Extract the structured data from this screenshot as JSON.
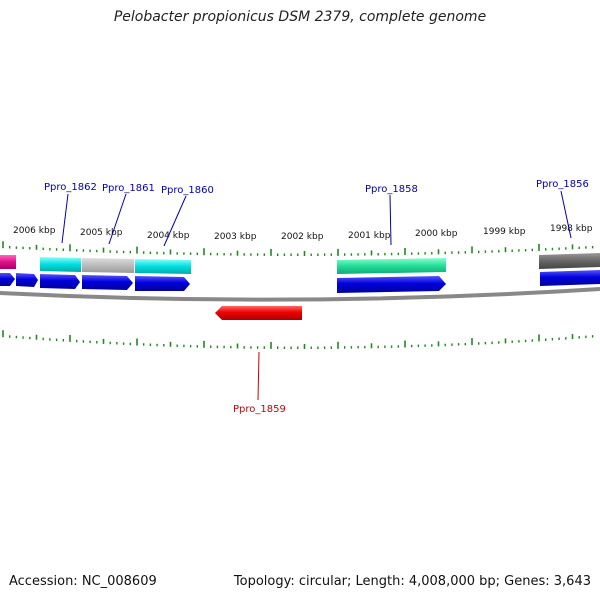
{
  "title": "Pelobacter propionicus DSM 2379, complete genome",
  "footer": {
    "accession": "Accession: NC_008609",
    "stats": "Topology: circular; Length: 4,008,000 bp; Genes: 3,643"
  },
  "scale_labels": [
    "2006 kbp",
    "2005 kbp",
    "2004 kbp",
    "2003 kbp",
    "2002 kbp",
    "2001 kbp",
    "2000 kbp",
    "1999 kbp",
    "1998 kbp"
  ],
  "gene_labels": [
    {
      "name": "Ppro_1862",
      "color": "#0000aa"
    },
    {
      "name": "Ppro_1861",
      "color": "#0000aa"
    },
    {
      "name": "Ppro_1860",
      "color": "#0000aa"
    },
    {
      "name": "Ppro_1858",
      "color": "#0000aa"
    },
    {
      "name": "Ppro_1856",
      "color": "#0000aa"
    },
    {
      "name": "Ppro_1859",
      "color": "#cc0000"
    }
  ],
  "feature_colors": {
    "cds": "#0000dd",
    "reverse_gene": "#ee0000",
    "cyan": "#00dddd",
    "gray": "#bbbbbb",
    "green": "#22dd99",
    "darkgray": "#666666",
    "magenta": "#dd1188",
    "tick": "#228822",
    "backbone": "#888888"
  }
}
